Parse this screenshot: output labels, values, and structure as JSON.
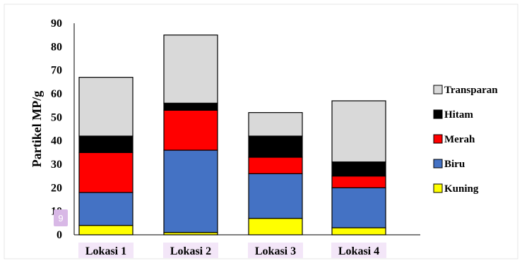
{
  "chart_data": {
    "type": "bar",
    "stacked": true,
    "title": "",
    "xlabel": "",
    "ylabel": "Partikel MP/g",
    "ylim": [
      0,
      90
    ],
    "yticks": [
      "0",
      "10",
      "20",
      "30",
      "40",
      "50",
      "60",
      "70",
      "80",
      "90"
    ],
    "categories": [
      "Lokasi 1",
      "Lokasi 2",
      "Lokasi 3",
      "Lokasi 4"
    ],
    "series": [
      {
        "name": "Kuning",
        "color": "#ffff00",
        "values": [
          4,
          1,
          7,
          3
        ]
      },
      {
        "name": "Biru",
        "color": "#4472c4",
        "values": [
          14,
          35,
          19,
          17
        ]
      },
      {
        "name": "Merah",
        "color": "#ff0000",
        "values": [
          17,
          17,
          7,
          5
        ]
      },
      {
        "name": "Hitam",
        "color": "#000000",
        "values": [
          7,
          3,
          9,
          6
        ]
      },
      {
        "name": "Transparan",
        "color": "#d9d9d9",
        "values": [
          25,
          29,
          10,
          26
        ]
      }
    ],
    "legend_position": "right",
    "grid": false
  },
  "overlay_badge": "9"
}
